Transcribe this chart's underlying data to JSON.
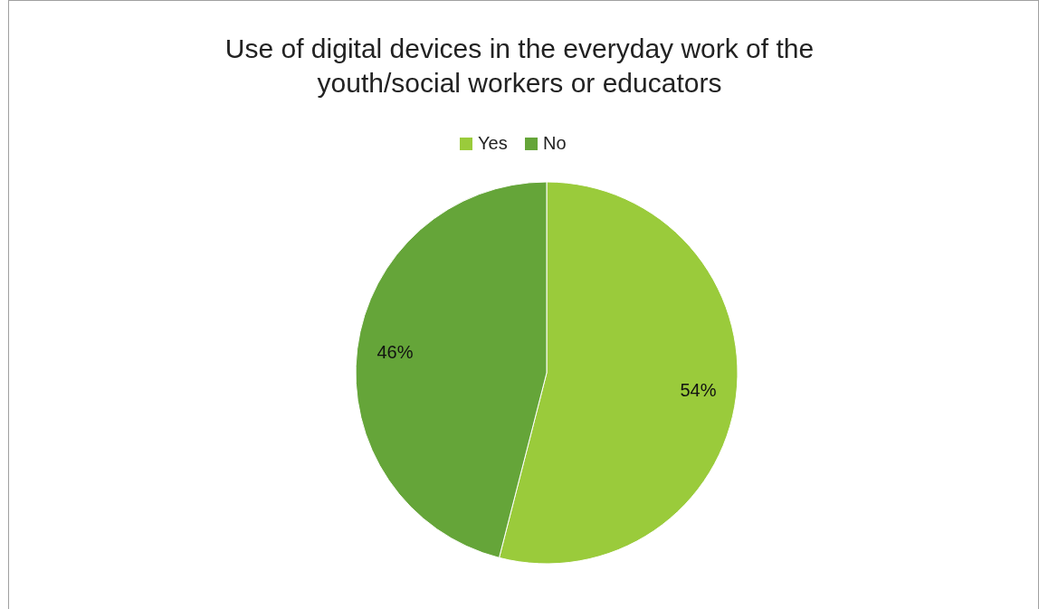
{
  "chart_data": {
    "type": "pie",
    "title": "Use of digital devices in the everyday work of the youth/social workers or educators",
    "categories": [
      "Yes",
      "No"
    ],
    "values": [
      54,
      46
    ],
    "colors": [
      "#9acb3b",
      "#65a539"
    ],
    "value_labels": [
      "54%",
      "46%"
    ],
    "legend": "top"
  }
}
